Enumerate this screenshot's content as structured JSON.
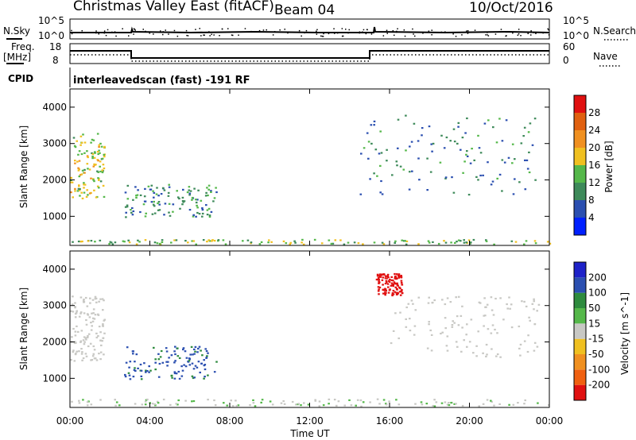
{
  "header": {
    "station": "Christmas Valley East (fitACF)",
    "beam": "Beam 04",
    "date": "10/Oct/2016"
  },
  "noise_panel": {
    "left_label": "N.Sky",
    "left_ticks": [
      "10^5",
      "10^0"
    ],
    "right_ticks": [
      "10^5",
      "10^0"
    ],
    "right_label": "N.Search"
  },
  "freq_panel": {
    "left_label_1": "Freq.",
    "left_label_2": "[MHz]",
    "left_ticks": [
      "18",
      "8"
    ],
    "right_ticks": [
      "60",
      "0"
    ],
    "right_label": "Nave"
  },
  "cpid": {
    "label": "CPID",
    "text": "interleavedscan (fast) -191 RF"
  },
  "x_axis": {
    "label": "Time UT",
    "ticks": [
      "00:00",
      "04:00",
      "08:00",
      "12:00",
      "16:00",
      "20:00",
      "00:00"
    ]
  },
  "colors": {
    "power": [
      "#0020ff",
      "#2b4fb0",
      "#3e8a5a",
      "#55b84a",
      "#f0c020",
      "#f09020",
      "#e06010",
      "#e01010"
    ],
    "velocity": [
      "#e01010",
      "#f06010",
      "#f09020",
      "#f0c020",
      "#c8c8c4",
      "#55b84a",
      "#2e8b3e",
      "#2b4fb0",
      "#1e22c8"
    ]
  },
  "chart_data": [
    {
      "type": "heatmap",
      "title": "Power",
      "ylabel": "Slant Range [km]",
      "xlabel": "",
      "y_ticks": [
        "1000",
        "2000",
        "3000",
        "4000"
      ],
      "ylim": [
        200,
        4500
      ],
      "xlim": [
        0,
        24
      ],
      "colorbar": {
        "label": "Power [dB]",
        "ticks": [
          "4",
          "8",
          "12",
          "16",
          "20",
          "24",
          "28"
        ],
        "range": [
          0,
          32
        ]
      },
      "regions": [
        {
          "t0": 0.0,
          "t1": 1.7,
          "r0": 1500,
          "r1": 3300,
          "value": 16
        },
        {
          "t0": 2.7,
          "t1": 7.3,
          "r0": 1000,
          "r1": 1900,
          "value": 10
        },
        {
          "t0": 14.5,
          "t1": 23.5,
          "r0": 1600,
          "r1": 3800,
          "value": 9
        },
        {
          "t0": 0.0,
          "t1": 24.0,
          "r0": 250,
          "r1": 380,
          "value": 14
        }
      ]
    },
    {
      "type": "heatmap",
      "title": "Velocity",
      "ylabel": "Slant Range [km]",
      "xlabel": "Time UT",
      "y_ticks": [
        "1000",
        "2000",
        "3000",
        "4000"
      ],
      "ylim": [
        200,
        4500
      ],
      "xlim": [
        0,
        24
      ],
      "colorbar": {
        "label": "Velocity [m s^-1]",
        "ticks": [
          "200",
          "100",
          "50",
          "15",
          "-15",
          "-50",
          "-100",
          "-200"
        ],
        "range": [
          -250,
          250
        ]
      },
      "regions": [
        {
          "t0": 0.0,
          "t1": 1.7,
          "r0": 1500,
          "r1": 3300,
          "value": 0
        },
        {
          "t0": 2.7,
          "t1": 7.3,
          "r0": 1000,
          "r1": 1900,
          "value": 150
        },
        {
          "t0": 15.3,
          "t1": 16.6,
          "r0": 3300,
          "r1": 3900,
          "value": -220
        },
        {
          "t0": 16.0,
          "t1": 23.5,
          "r0": 1600,
          "r1": 3300,
          "value": 0
        },
        {
          "t0": 0.0,
          "t1": 24.0,
          "r0": 250,
          "r1": 450,
          "value": 20
        }
      ]
    }
  ]
}
